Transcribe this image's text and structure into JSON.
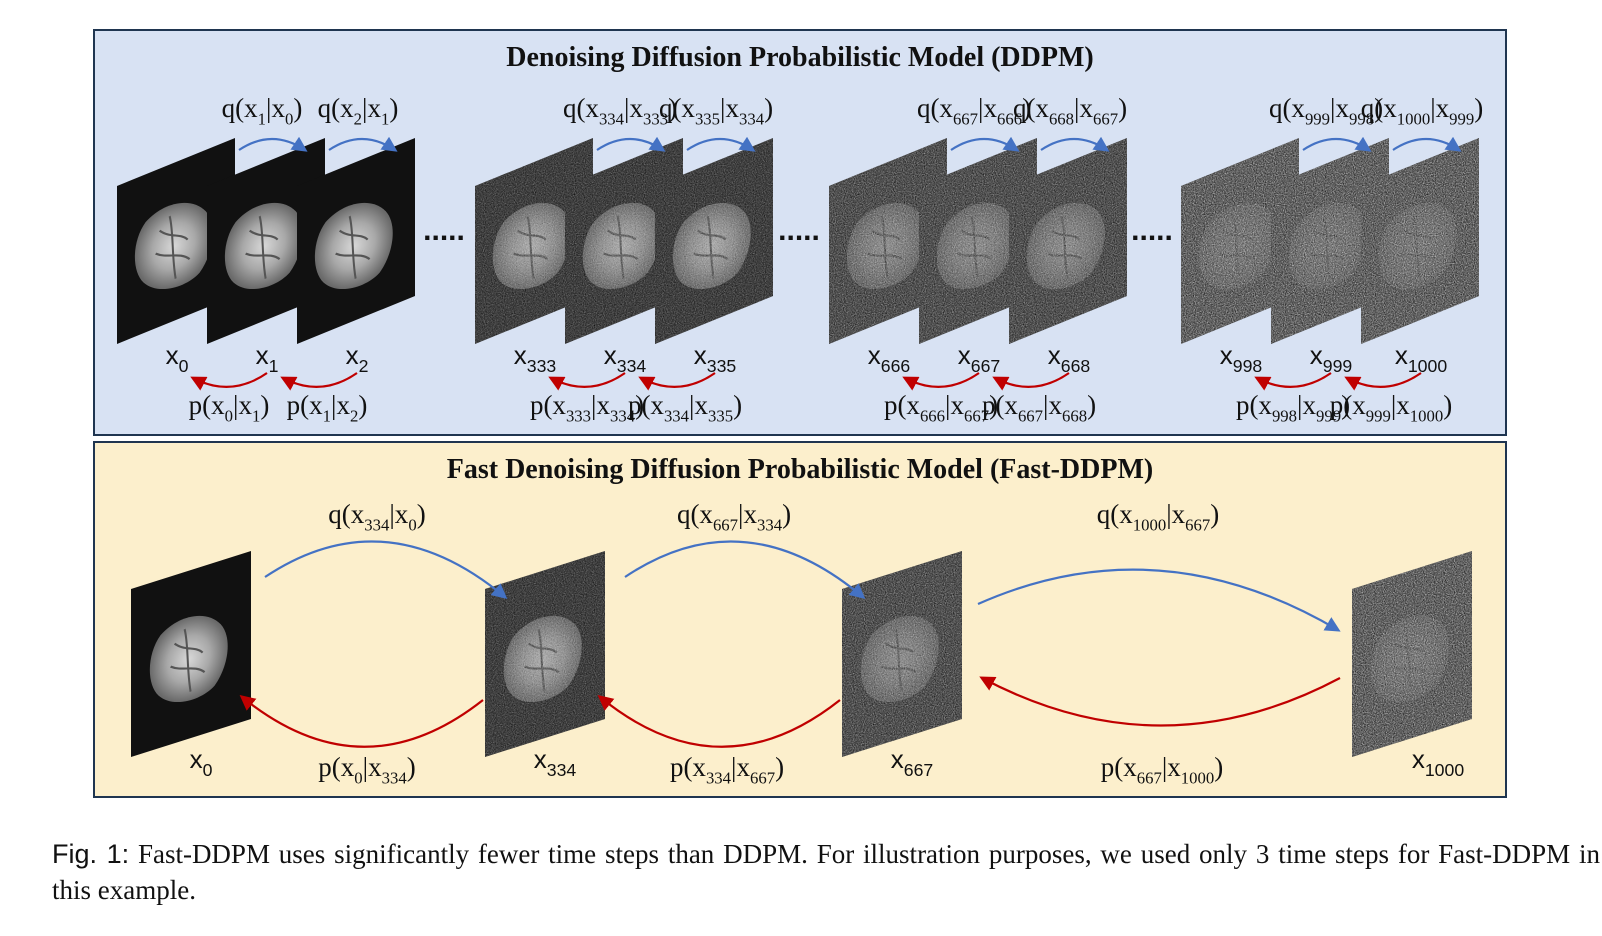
{
  "ddpm_panel": {
    "title": "Denoising Diffusion Probabilistic Model (DDPM)",
    "frames": [
      {
        "label": "x",
        "sub": "0",
        "noise": 0
      },
      {
        "label": "x",
        "sub": "1",
        "noise": 0
      },
      {
        "label": "x",
        "sub": "2",
        "noise": 0
      },
      {
        "label": "x",
        "sub": "333",
        "noise": 0.33
      },
      {
        "label": "x",
        "sub": "334",
        "noise": 0.33
      },
      {
        "label": "x",
        "sub": "335",
        "noise": 0.34
      },
      {
        "label": "x",
        "sub": "666",
        "noise": 0.66
      },
      {
        "label": "x",
        "sub": "667",
        "noise": 0.67
      },
      {
        "label": "x",
        "sub": "668",
        "noise": 0.67
      },
      {
        "label": "x",
        "sub": "998",
        "noise": 1.0
      },
      {
        "label": "x",
        "sub": "999",
        "noise": 1.0
      },
      {
        "label": "x",
        "sub": "1000",
        "noise": 1.0
      }
    ],
    "forward_labels": [
      {
        "fn": "q",
        "a": "1",
        "b": "0"
      },
      {
        "fn": "q",
        "a": "2",
        "b": "1"
      },
      {
        "fn": "q",
        "a": "334",
        "b": "333"
      },
      {
        "fn": "q",
        "a": "335",
        "b": "334"
      },
      {
        "fn": "q",
        "a": "667",
        "b": "666"
      },
      {
        "fn": "q",
        "a": "668",
        "b": "667"
      },
      {
        "fn": "q",
        "a": "999",
        "b": "998"
      },
      {
        "fn": "q",
        "a": "1000",
        "b": "999"
      }
    ],
    "reverse_labels": [
      {
        "fn": "p",
        "a": "0",
        "b": "1"
      },
      {
        "fn": "p",
        "a": "1",
        "b": "2"
      },
      {
        "fn": "p",
        "a": "333",
        "b": "334"
      },
      {
        "fn": "p",
        "a": "334",
        "b": "335"
      },
      {
        "fn": "p",
        "a": "666",
        "b": "667"
      },
      {
        "fn": "p",
        "a": "667",
        "b": "668"
      },
      {
        "fn": "p",
        "a": "998",
        "b": "999"
      },
      {
        "fn": "p",
        "a": "999",
        "b": "1000"
      }
    ],
    "ellipsis": "....."
  },
  "fast_panel": {
    "title": "Fast Denoising Diffusion Probabilistic Model (Fast-DDPM)",
    "frames": [
      {
        "label": "x",
        "sub": "0",
        "noise": 0
      },
      {
        "label": "x",
        "sub": "334",
        "noise": 0.33
      },
      {
        "label": "x",
        "sub": "667",
        "noise": 0.67
      },
      {
        "label": "x",
        "sub": "1000",
        "noise": 1.0
      }
    ],
    "forward_labels": [
      {
        "fn": "q",
        "a": "334",
        "b": "0"
      },
      {
        "fn": "q",
        "a": "667",
        "b": "334"
      },
      {
        "fn": "q",
        "a": "1000",
        "b": "667"
      }
    ],
    "reverse_labels": [
      {
        "fn": "p",
        "a": "0",
        "b": "334"
      },
      {
        "fn": "p",
        "a": "334",
        "b": "667"
      },
      {
        "fn": "p",
        "a": "667",
        "b": "1000"
      }
    ]
  },
  "caption": {
    "label": "Fig. 1:",
    "text": "Fast-DDPM uses significantly fewer time steps than DDPM. For illustration purposes, we used only 3 time steps for Fast-DDPM in this example."
  },
  "colors": {
    "ddpm_bg": "#d8e2f3",
    "fast_bg": "#fcefcc",
    "border": "#1f3550",
    "forward_arrow": "#4472c4",
    "reverse_arrow": "#c00000"
  }
}
